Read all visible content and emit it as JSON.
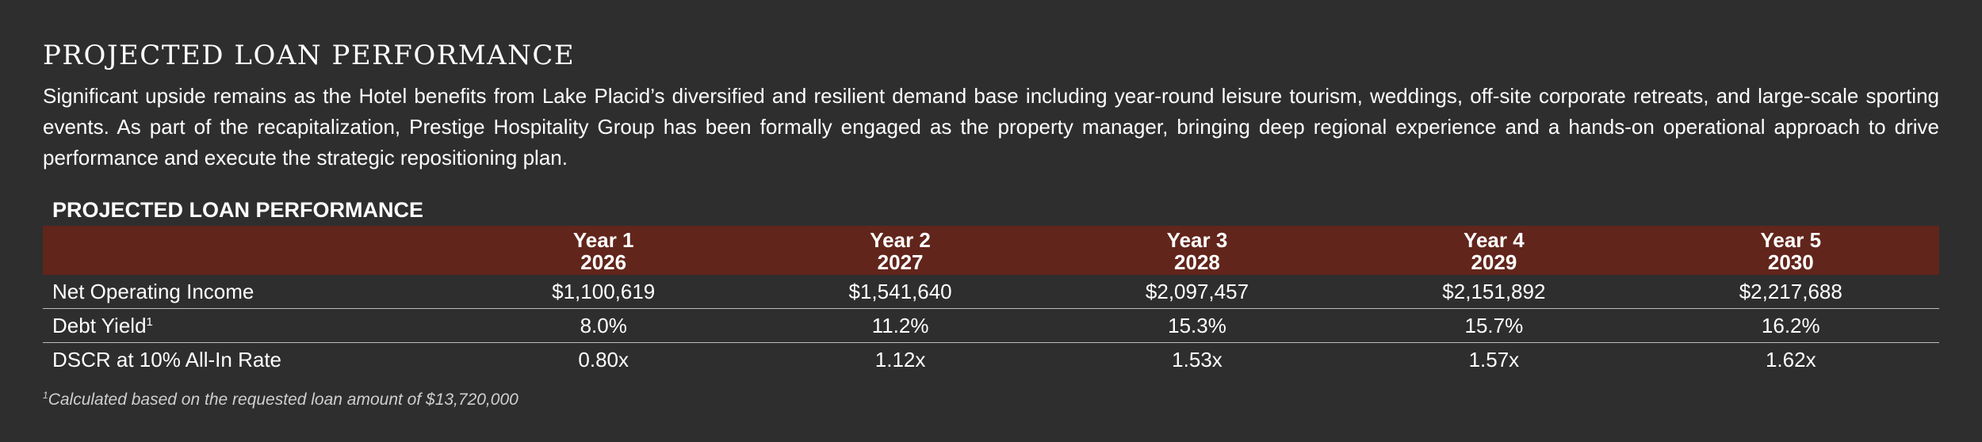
{
  "heading": "PROJECTED LOAN PERFORMANCE",
  "intro": "Significant upside remains as the Hotel benefits from Lake Placid’s diversified and resilient demand base including year-round leisure tourism, weddings, off-site corporate retreats, and large-scale sporting events. As part of the recapitalization, Prestige Hospitality Group has been formally engaged as the property manager, bringing deep regional experience and a hands-on operational approach to drive performance and execute the strategic repositioning plan.",
  "table": {
    "title": "PROJECTED LOAN PERFORMANCE",
    "columns": [
      {
        "label": "Year 1",
        "year": "2026"
      },
      {
        "label": "Year 2",
        "year": "2027"
      },
      {
        "label": "Year 3",
        "year": "2028"
      },
      {
        "label": "Year 4",
        "year": "2029"
      },
      {
        "label": "Year 5",
        "year": "2030"
      }
    ],
    "rows": [
      {
        "label": "Net Operating Income",
        "marker": "",
        "values": [
          "$1,100,619",
          "$1,541,640",
          "$2,097,457",
          "$2,151,892",
          "$2,217,688"
        ]
      },
      {
        "label": "Debt Yield",
        "marker": "1",
        "values": [
          "8.0%",
          "11.2%",
          "15.3%",
          "15.7%",
          "16.2%"
        ]
      },
      {
        "label": "DSCR at 10% All-In Rate",
        "marker": "",
        "values": [
          "0.80x",
          "1.12x",
          "1.53x",
          "1.57x",
          "1.62x"
        ]
      }
    ],
    "header_color": "#61251b"
  },
  "footnote": {
    "marker": "1",
    "text": "Calculated based on the requested loan amount of $13,720,000"
  },
  "colors": {
    "background": "#2e2e2e",
    "text": "#ffffff",
    "divider": "#bdbdbd"
  }
}
